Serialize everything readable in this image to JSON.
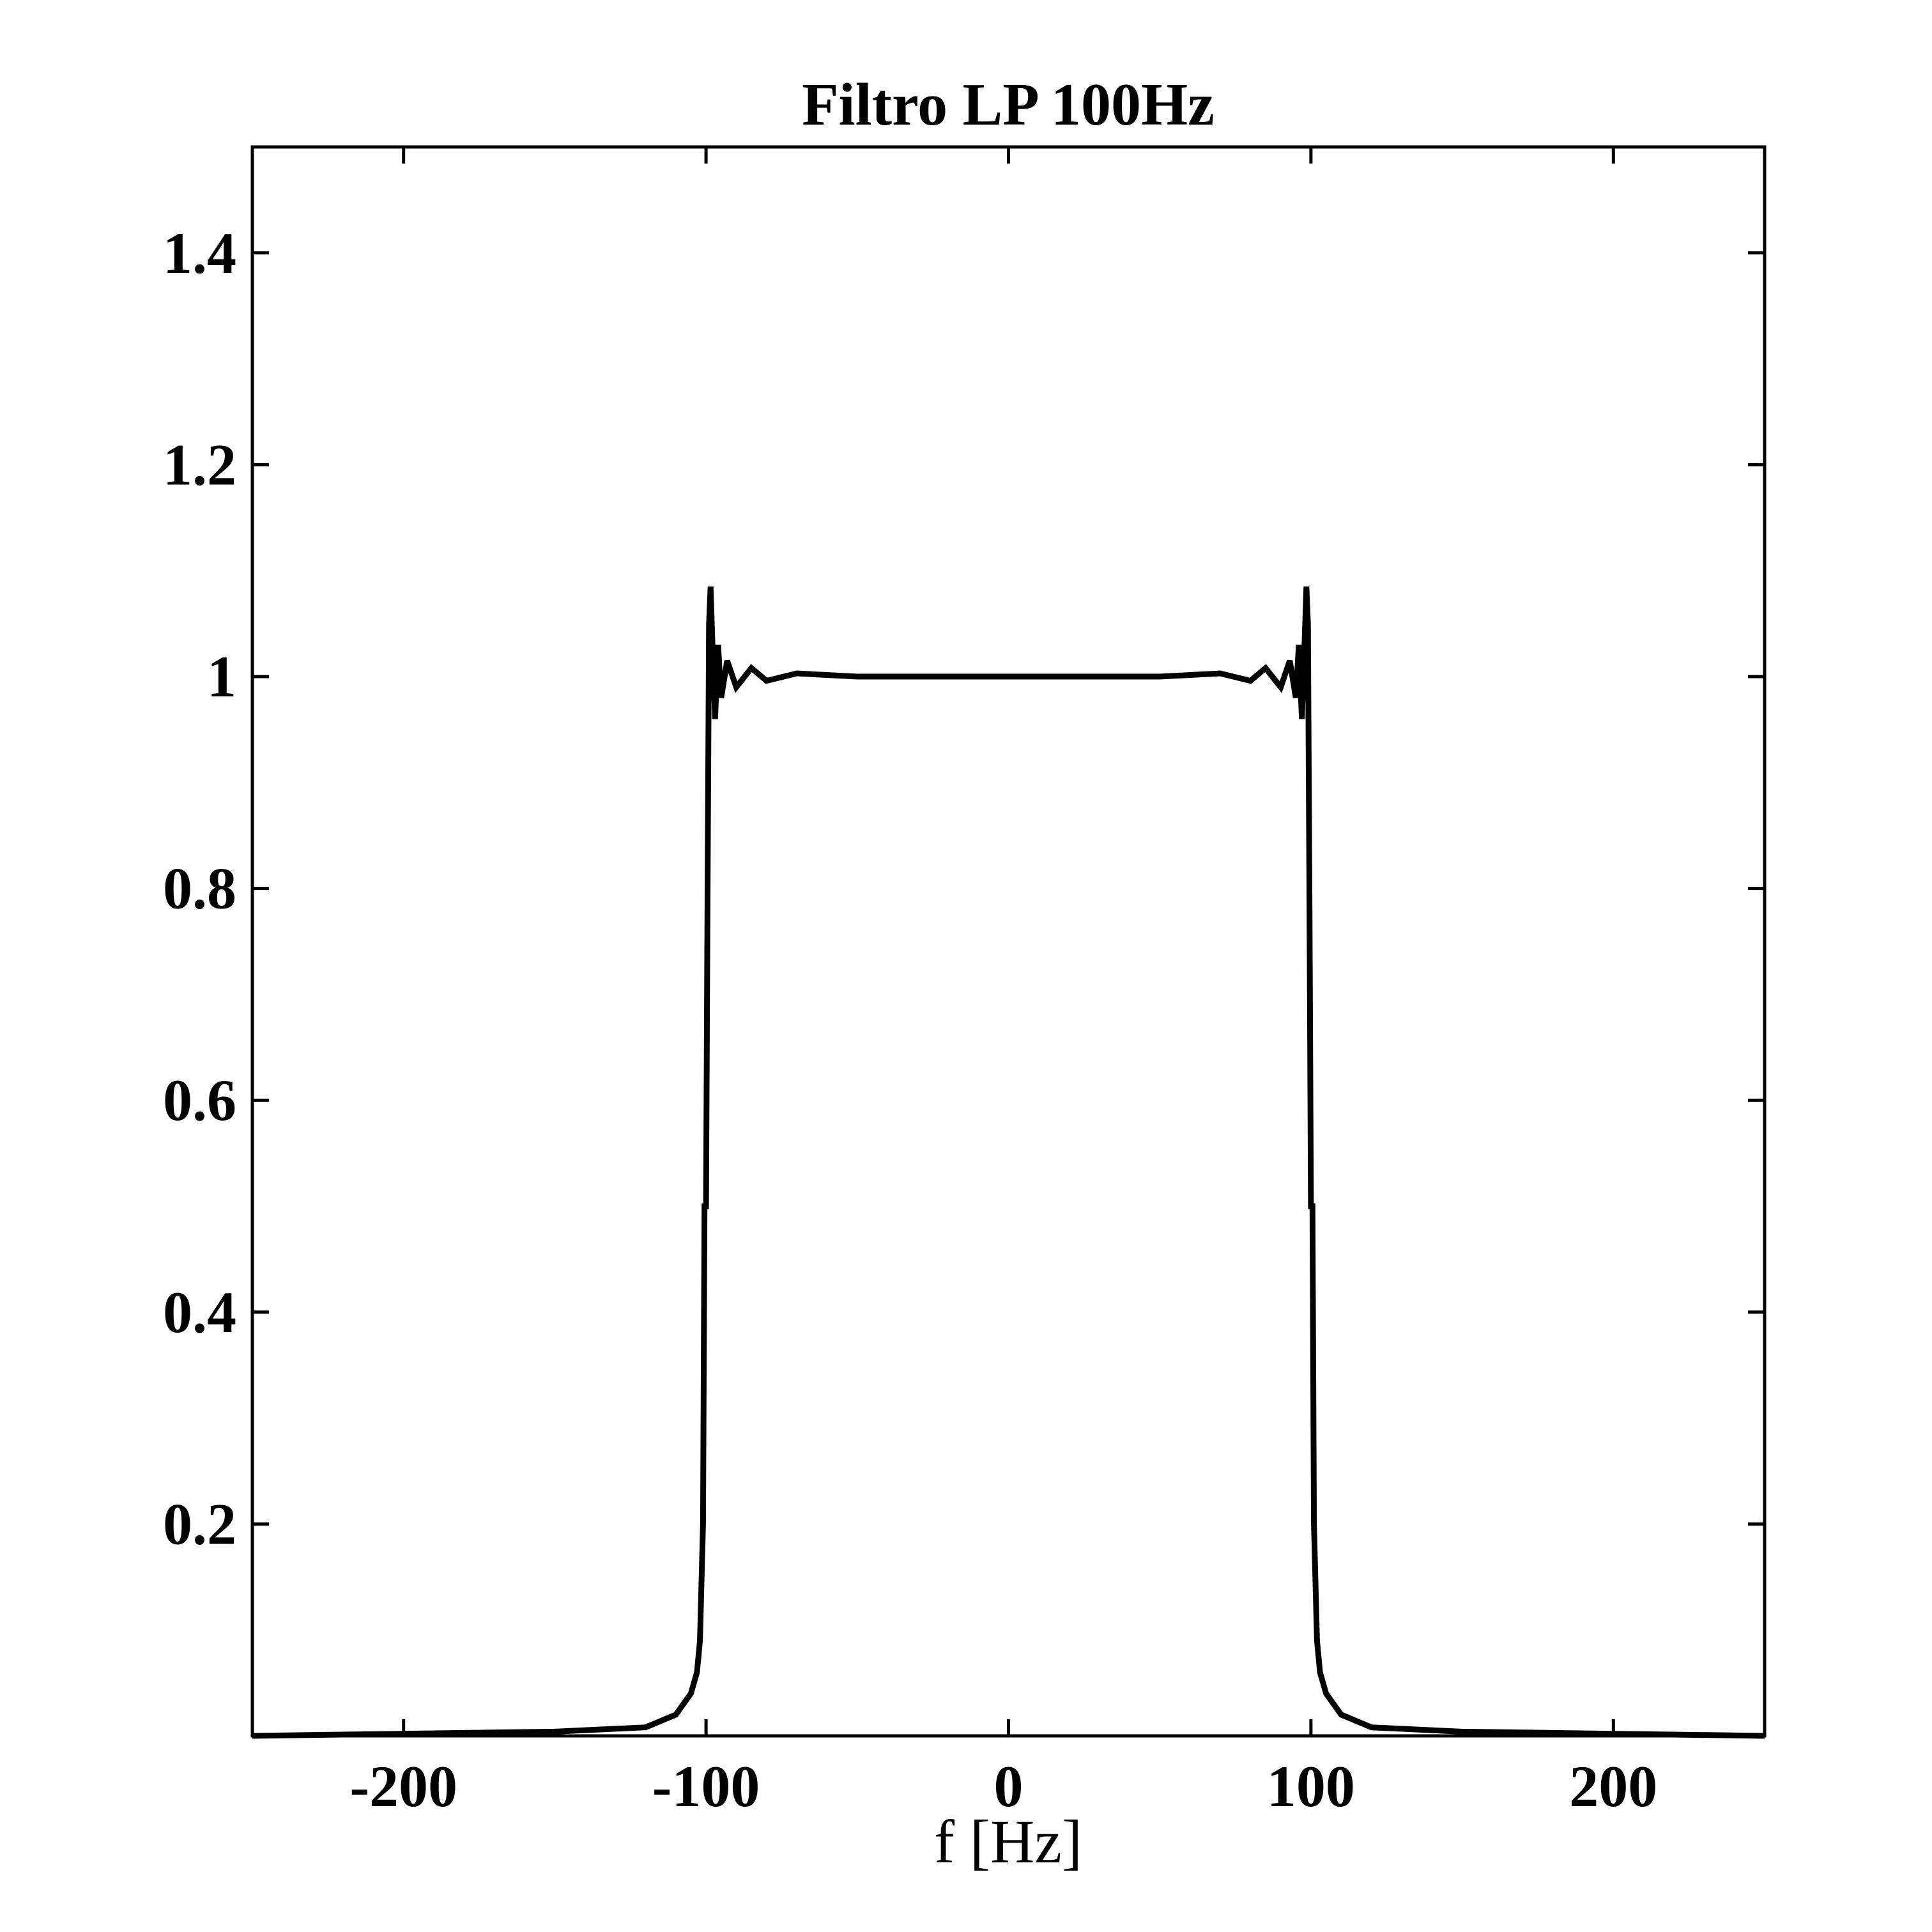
{
  "chart_data": {
    "type": "line",
    "title": "Filtro LP 100Hz",
    "xlabel": "f [Hz]",
    "ylabel": "",
    "xlim": [
      -250,
      250
    ],
    "ylim": [
      0,
      1.5
    ],
    "xticks": [
      -200,
      -100,
      0,
      100,
      200
    ],
    "xtick_labels": [
      "-200",
      "-100",
      "0",
      "100",
      "200"
    ],
    "yticks": [
      0.2,
      0.4,
      0.6,
      0.8,
      1,
      1.2,
      1.4
    ],
    "ytick_labels": [
      "0.2",
      "0.4",
      "0.6",
      "0.8",
      "1",
      "1.2",
      "1.4"
    ],
    "grid": false,
    "legend": "none",
    "line_color": "#000000",
    "series": [
      {
        "x": [
          -250,
          -200,
          -150,
          -120,
          -110,
          -105,
          -103,
          -102,
          -101,
          -100.5,
          -100,
          -99.5,
          -99,
          -98.5,
          -98,
          -97,
          -96,
          -95,
          -93,
          -90,
          -85,
          -80,
          -70,
          -50,
          0,
          50,
          70,
          80,
          85,
          90,
          93,
          95,
          96,
          97,
          98,
          98.5,
          99,
          99.5,
          100,
          100.5,
          101,
          102,
          103,
          105,
          110,
          120,
          150,
          200,
          250
        ],
        "y": [
          0,
          0.002,
          0.004,
          0.008,
          0.02,
          0.04,
          0.06,
          0.09,
          0.2,
          0.5,
          0.5,
          0.8,
          1.05,
          1.085,
          1.04,
          0.96,
          1.03,
          0.98,
          1.015,
          0.99,
          1.008,
          0.996,
          1.003,
          1.0,
          1.0,
          1.0,
          1.003,
          0.996,
          1.008,
          0.99,
          1.015,
          0.98,
          1.03,
          0.96,
          1.04,
          1.085,
          1.05,
          0.8,
          0.5,
          0.5,
          0.2,
          0.09,
          0.06,
          0.04,
          0.02,
          0.008,
          0.004,
          0.002,
          0
        ]
      }
    ]
  }
}
